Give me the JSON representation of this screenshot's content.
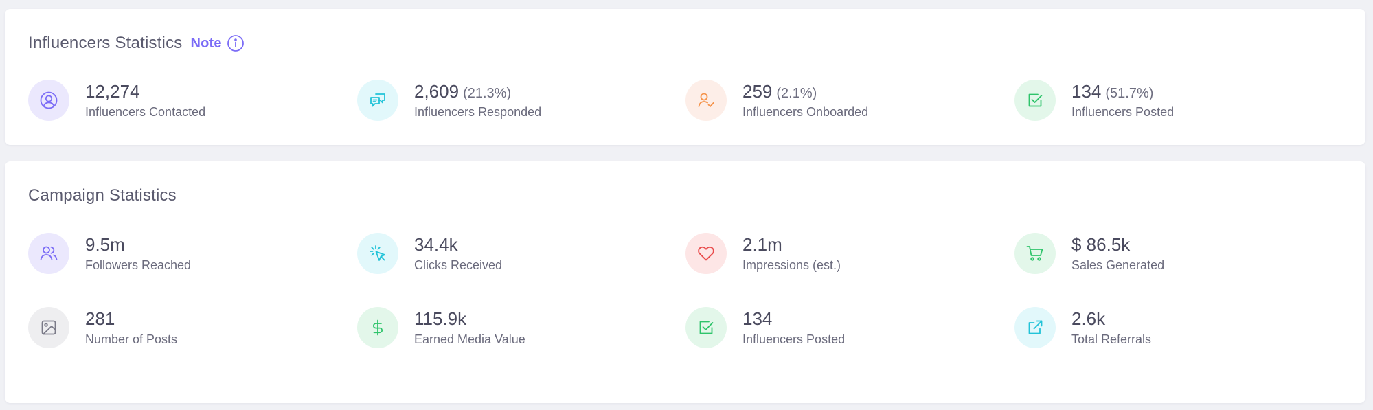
{
  "influencers": {
    "title": "Influencers Statistics",
    "note_label": "Note",
    "stats": [
      {
        "value": "12,274",
        "percent": "",
        "label": "Influencers Contacted",
        "icon": "user-circle-icon",
        "color": "#7b6cf6"
      },
      {
        "value": "2,609",
        "percent": "(21.3%)",
        "label": "Influencers Responded",
        "icon": "chat-bubbles-icon",
        "color": "#22c3d8"
      },
      {
        "value": "259",
        "percent": "(2.1%)",
        "label": "Influencers Onboarded",
        "icon": "user-check-icon",
        "color": "#f5934b"
      },
      {
        "value": "134",
        "percent": "(51.7%)",
        "label": "Influencers Posted",
        "icon": "checkbox-icon",
        "color": "#2fc46b"
      }
    ]
  },
  "campaign": {
    "title": "Campaign Statistics",
    "stats": [
      {
        "value": "9.5m",
        "label": "Followers Reached",
        "icon": "users-icon",
        "color": "#7b6cf6"
      },
      {
        "value": "34.4k",
        "label": "Clicks Received",
        "icon": "cursor-click-icon",
        "color": "#22c3d8"
      },
      {
        "value": "2.1m",
        "label": "Impressions (est.)",
        "icon": "heart-icon",
        "color": "#e94b4b"
      },
      {
        "value": "$ 86.5k",
        "label": "Sales Generated",
        "icon": "shopping-cart-icon",
        "color": "#2fc46b"
      },
      {
        "value": "281",
        "label": "Number of Posts",
        "icon": "image-icon",
        "color": "#7a7a88"
      },
      {
        "value": "115.9k",
        "label": "Earned Media Value",
        "icon": "dollar-icon",
        "color": "#2fc46b"
      },
      {
        "value": "134",
        "label": "Influencers Posted",
        "icon": "checkbox-icon",
        "color": "#2fc46b"
      },
      {
        "value": "2.6k",
        "label": "Total Referrals",
        "icon": "external-link-icon",
        "color": "#22c3d8"
      }
    ]
  }
}
